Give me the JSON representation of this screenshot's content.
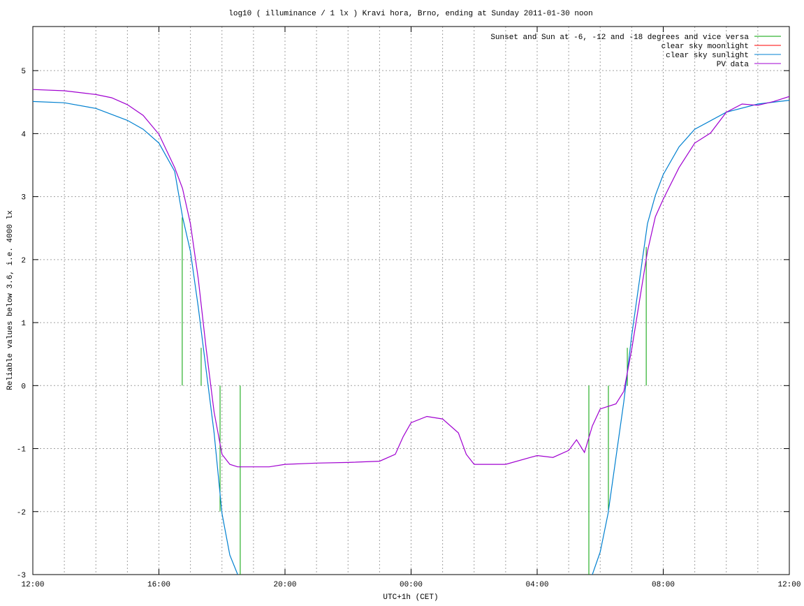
{
  "chart_data": {
    "type": "line",
    "title": "log10 ( illuminance / 1 lx ) Kravi hora, Brno, ending at Sunday 2011-01-30 noon",
    "x_label": "UTC+1h (CET)",
    "y_label": "Reliable values below 3.6, i.e. 4000 lx",
    "xlim": [
      0,
      24
    ],
    "ylim": [
      -3,
      5.7
    ],
    "xticks": [
      {
        "value": 0,
        "label": "12:00"
      },
      {
        "value": 4,
        "label": "16:00"
      },
      {
        "value": 8,
        "label": "20:00"
      },
      {
        "value": 12,
        "label": "00:00"
      },
      {
        "value": 16,
        "label": "04:00"
      },
      {
        "value": 20,
        "label": "08:00"
      },
      {
        "value": 24,
        "label": "12:00"
      }
    ],
    "xgrid": [
      1,
      2,
      3,
      4,
      5,
      6,
      7,
      8,
      9,
      10,
      11,
      12,
      13,
      14,
      15,
      16,
      17,
      18,
      19,
      20,
      21,
      22,
      23
    ],
    "yticks": [
      -3,
      -2,
      -1,
      0,
      1,
      2,
      3,
      4,
      5
    ],
    "grid": true,
    "legend": "top-right",
    "series": [
      {
        "name": "Sunset and Sun at -6, -12 and -18 degrees and vice versa",
        "color": "#00a000",
        "style": "impulses",
        "x": [
          4.74,
          5.34,
          5.94,
          6.58,
          17.64,
          18.26,
          18.86,
          19.46
        ],
        "values": [
          2.67,
          0.6,
          -2.0,
          -3,
          -3,
          -2.0,
          0.6,
          2.2
        ]
      },
      {
        "name": "clear sky moonlight",
        "color": "#ff0000",
        "style": "line",
        "x": [],
        "values": []
      },
      {
        "name": "clear sky sunlight",
        "color": "#0080d0",
        "style": "line",
        "x": [
          0,
          1,
          2,
          3,
          3.5,
          4,
          4.5,
          4.75,
          5,
          5.25,
          5.5,
          5.75,
          6,
          6.25,
          6.5,
          12,
          17.75,
          18,
          18.25,
          18.5,
          18.75,
          19,
          19.25,
          19.5,
          19.75,
          20,
          20.5,
          21,
          22,
          23,
          24
        ],
        "values": [
          4.51,
          4.49,
          4.4,
          4.21,
          4.07,
          3.85,
          3.4,
          2.68,
          2.13,
          1.24,
          0.24,
          -0.75,
          -2.03,
          -2.69,
          -3,
          null,
          -3,
          -2.64,
          -2.03,
          -1.14,
          -0.25,
          0.8,
          1.69,
          2.57,
          3.02,
          3.35,
          3.79,
          4.07,
          4.34,
          4.47,
          4.53
        ]
      },
      {
        "name": "PV data",
        "color": "#a000d0",
        "style": "line",
        "x": [
          0,
          1,
          2,
          2.5,
          3,
          3.5,
          4,
          4.5,
          4.75,
          5,
          5.25,
          5.5,
          5.75,
          6,
          6.25,
          6.5,
          7,
          7.5,
          8,
          9,
          10,
          11,
          11.5,
          11.75,
          12,
          12.5,
          13,
          13.5,
          13.75,
          14,
          15,
          16,
          16.5,
          17,
          17.25,
          17.5,
          17.75,
          18,
          18.5,
          18.75,
          19,
          19.5,
          19.75,
          20,
          20.5,
          21,
          21.5,
          22,
          22.5,
          23,
          23.5,
          24
        ],
        "values": [
          4.7,
          4.68,
          4.62,
          4.57,
          4.46,
          4.29,
          3.99,
          3.46,
          3.13,
          2.57,
          1.69,
          0.58,
          -0.42,
          -1.09,
          -1.25,
          -1.29,
          -1.29,
          -1.29,
          -1.25,
          -1.23,
          -1.22,
          -1.2,
          -1.09,
          -0.81,
          -0.59,
          -0.49,
          -0.53,
          -0.75,
          -1.09,
          -1.25,
          -1.25,
          -1.11,
          -1.14,
          -1.03,
          -0.86,
          -1.06,
          -0.64,
          -0.37,
          -0.29,
          -0.09,
          0.58,
          2.13,
          2.68,
          2.96,
          3.46,
          3.85,
          4.01,
          4.34,
          4.47,
          4.45,
          4.51,
          4.59
        ]
      }
    ]
  }
}
